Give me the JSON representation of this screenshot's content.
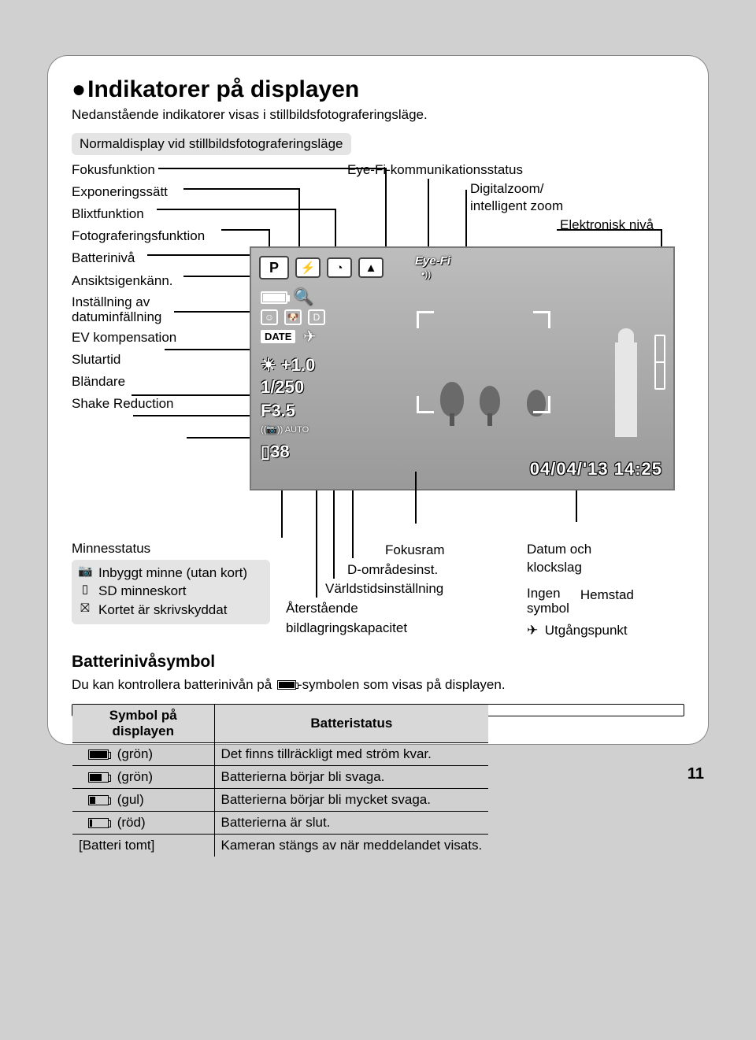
{
  "title": "Indikatorer på displayen",
  "subtitle": "Nedanstående indikatorer visas i stillbildsfotograferingsläge.",
  "section_header": "Normaldisplay vid stillbildsfotograferingsläge",
  "left_labels": {
    "focus_fn": "Fokusfunktion",
    "exposure": "Exponeringssätt",
    "flash": "Blixtfunktion",
    "shoot_fn": "Fotograferingsfunktion",
    "battery": "Batterinivå",
    "face": "Ansiktsigenkänn.",
    "date_imprint": "Inställning av datuminfällning",
    "ev": "EV kompensation",
    "shutter": "Slutartid",
    "aperture": "Bländare",
    "sr": "Shake Reduction"
  },
  "top_labels": {
    "eyefi": "Eye-Fi-kommunikationsstatus",
    "zoom1": "Digitalzoom/",
    "zoom2": "intelligent zoom",
    "level": "Elektronisk nivå"
  },
  "lcd": {
    "mode": "P",
    "flash_icon": "⚡",
    "timer_icon": "◔",
    "focus_icon": "▲",
    "eyefi": "Eye-Fi",
    "eyefi_wave": "•))",
    "face_icon": "☺",
    "pet_icon": "🐶",
    "d_icon": "D",
    "date_badge": "DATE",
    "plane": "✈",
    "ev_value": "+1.0",
    "shutter_value": "1/250",
    "aperture_value": "F3.5",
    "sr_value": "((📷))\nAUTO",
    "remaining": "38",
    "datetime": "04/04/'13 14:25"
  },
  "bottom": {
    "mem_title": "Minnesstatus",
    "mem_items": [
      {
        "icon": "📷",
        "text": "Inbyggt minne (utan kort)"
      },
      {
        "icon": "▯",
        "text": "SD minneskort"
      },
      {
        "icon": "⛝",
        "text": "Kortet är skrivskyddat"
      }
    ],
    "c1": "Fokusram",
    "c2": "D-områdesinst.",
    "c3": "Världstidsinställning",
    "c4a": "Återstående",
    "c4b": "bildlagringskapacitet",
    "r1a": "Datum och",
    "r1b": "klockslag",
    "r2a": "Ingen",
    "r2b": "symbol",
    "r2c": "Hemstad",
    "r3_icon": "✈",
    "r3": "Utgångspunkt"
  },
  "battery_section": {
    "heading": "Batterinivåsymbol",
    "desc_a": "Du kan kontrollera batterinivån på ",
    "desc_b": "-symbolen som visas på displayen.",
    "table": {
      "header_symbol": "Symbol på displayen",
      "header_status": "Batteristatus",
      "rows": [
        {
          "fill": 100,
          "color": "(grön)",
          "status": "Det finns tillräckligt med ström kvar."
        },
        {
          "fill": 66,
          "color": "(grön)",
          "status": "Batterierna börjar bli svaga."
        },
        {
          "fill": 33,
          "color": "(gul)",
          "status": "Batterierna börjar bli mycket svaga."
        },
        {
          "fill": 12,
          "color": "(röd)",
          "status": "Batterierna är slut."
        },
        {
          "text": "[Batteri tomt]",
          "status": "Kameran stängs av när meddelandet visats."
        }
      ]
    }
  },
  "page_number": "11"
}
